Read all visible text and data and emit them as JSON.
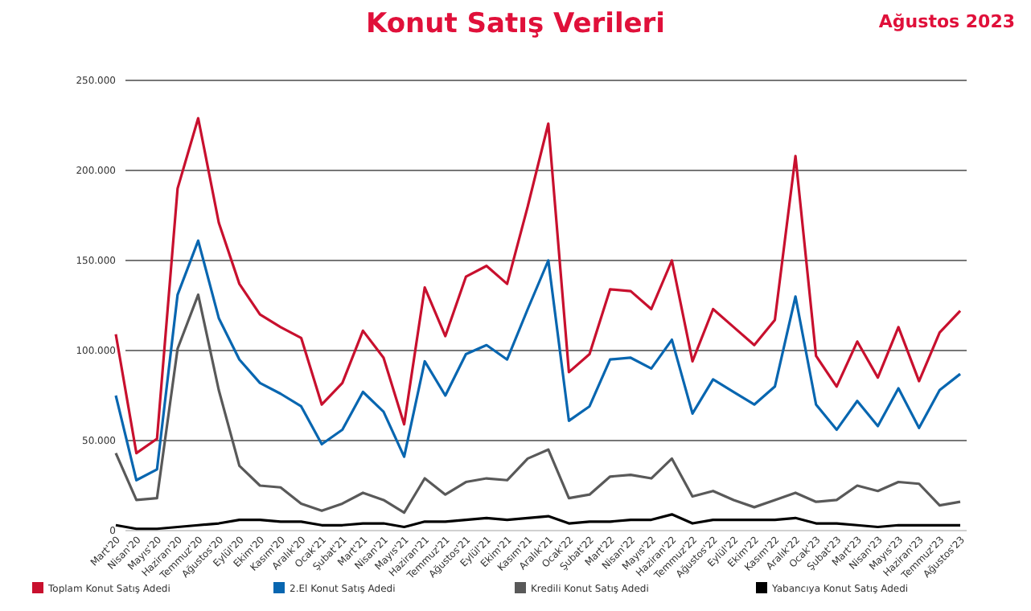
{
  "chart_data": {
    "type": "line",
    "title": "Konut Satış Verileri",
    "subtitle": "Ağustos 2023",
    "categories": [
      "Mart'20",
      "Nisan'20",
      "Mayıs'20",
      "Haziran'20",
      "Temmuz'20",
      "Ağustos'20",
      "Eylül'20",
      "Ekim'20",
      "Kasım'20",
      "Aralık'20",
      "Ocak'21",
      "Şubat'21",
      "Mart'21",
      "Nisan'21",
      "Mayıs'21",
      "Haziran'21",
      "Temmuz'21",
      "Ağustos'21",
      "Eylül'21",
      "Ekim'21",
      "Kasım'21",
      "Aralık'21",
      "Ocak'22",
      "Şubat'22",
      "Mart'22",
      "Nisan'22",
      "Mayıs'22",
      "Haziran'22",
      "Temmuz'22",
      "Ağustos'22",
      "Eylül'22",
      "Ekim'22",
      "Kasım'22",
      "Aralık'22",
      "Ocak'23",
      "Şubat'23",
      "Mart'23",
      "Nisan'23",
      "Mayıs'23",
      "Haziran'23",
      "Temmuz'23",
      "Ağustos'23"
    ],
    "series": [
      {
        "name": "Toplam Konut Satış Adedi",
        "color": "#c8102e",
        "values": [
          109000,
          43000,
          51000,
          190000,
          229000,
          171000,
          137000,
          120000,
          113000,
          107000,
          70000,
          82000,
          111000,
          96000,
          59000,
          135000,
          108000,
          141000,
          147000,
          137000,
          180000,
          226000,
          88000,
          98000,
          134000,
          133000,
          123000,
          150000,
          94000,
          123000,
          113000,
          103000,
          117000,
          208000,
          97000,
          80000,
          105000,
          85000,
          113000,
          83000,
          110000,
          122000
        ]
      },
      {
        "name": "2.El Konut Satış Adedi",
        "color": "#0866b0",
        "values": [
          75000,
          28000,
          34000,
          131000,
          161000,
          118000,
          95000,
          82000,
          76000,
          69000,
          48000,
          56000,
          77000,
          66000,
          41000,
          94000,
          75000,
          98000,
          103000,
          95000,
          123000,
          150000,
          61000,
          69000,
          95000,
          96000,
          90000,
          106000,
          65000,
          84000,
          77000,
          70000,
          80000,
          130000,
          70000,
          56000,
          72000,
          58000,
          79000,
          57000,
          78000,
          87000
        ]
      },
      {
        "name": "Kredili Konut Satış Adedi",
        "color": "#595959",
        "values": [
          43000,
          17000,
          18000,
          101000,
          131000,
          78000,
          36000,
          25000,
          24000,
          15000,
          11000,
          15000,
          21000,
          17000,
          10000,
          29000,
          20000,
          27000,
          29000,
          28000,
          40000,
          45000,
          18000,
          20000,
          30000,
          31000,
          29000,
          40000,
          19000,
          22000,
          17000,
          13000,
          17000,
          21000,
          16000,
          17000,
          25000,
          22000,
          27000,
          26000,
          14000,
          16000
        ]
      },
      {
        "name": "Yabancıya Konut Satış Adedi",
        "color": "#000000",
        "values": [
          3000,
          1000,
          1000,
          2000,
          3000,
          4000,
          6000,
          6000,
          5000,
          5000,
          3000,
          3000,
          4000,
          4000,
          2000,
          5000,
          5000,
          6000,
          7000,
          6000,
          7000,
          8000,
          4000,
          5000,
          5000,
          6000,
          6000,
          9000,
          4000,
          6000,
          6000,
          6000,
          6000,
          7000,
          4000,
          4000,
          3000,
          2000,
          3000,
          3000,
          3000,
          3000
        ]
      }
    ],
    "ylim": [
      0,
      250000
    ],
    "yticks": [
      {
        "value": 0,
        "label": "0"
      },
      {
        "value": 50000,
        "label": "50.000"
      },
      {
        "value": 100000,
        "label": "100.000"
      },
      {
        "value": 150000,
        "label": "150.000"
      },
      {
        "value": 200000,
        "label": "200.000"
      },
      {
        "value": 250000,
        "label": "250.000"
      }
    ],
    "grid": "y",
    "legend": "bottom",
    "marker": "none",
    "line_style": "solid"
  }
}
